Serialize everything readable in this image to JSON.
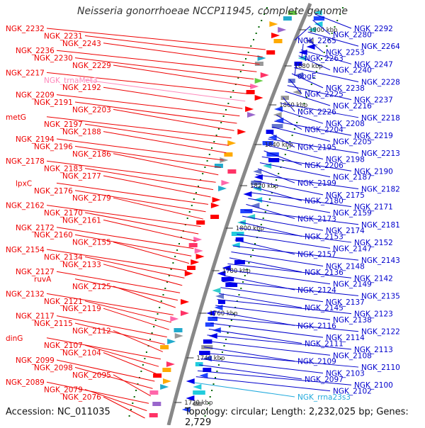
{
  "title": "Neisseria gonorrhoeae NCCP11945, complete genome",
  "footer": {
    "accession": "Accession: NC_011035",
    "topology": "Topology: circular; Length: 2,232,025 bp; Genes: 2,729"
  },
  "colors": {
    "left_gene_label": "#ee0000",
    "right_gene_label": "#0000cc",
    "trna_label": "#ff88bb",
    "rrna_label": "#22aadd",
    "backbone": "#888888",
    "tick_dots": "#006600"
  },
  "scale_ticks": [
    "1900 kbp",
    "1880 kbp",
    "1860 kbp",
    "1840 kbp",
    "1820 kbp",
    "1800 kbp",
    "1780 kbp",
    "1760 kbp",
    "1740 kbp",
    "1720 kbp"
  ],
  "left_labels": [
    "NGK_2232",
    "NGK_2231",
    "NGK_2243",
    "NGK_2236",
    "NGK_2230",
    "NGK_2229",
    "NGK_2217",
    "NGK_trnaMet3",
    "NGK_2192",
    "NGK_2209",
    "NGK_2191",
    "NGK_2203",
    "metG",
    "NGK_2197",
    "NGK_2188",
    "NGK_2194",
    "NGK_2196",
    "NGK_2186",
    "NGK_2178",
    "NGK_2183",
    "NGK_2177",
    "lpxC",
    "NGK_2176",
    "NGK_2179",
    "NGK_2162",
    "NGK_2170",
    "NGK_2161",
    "NGK_2172",
    "NGK_2160",
    "NGK_2155",
    "NGK_2154",
    "NGK_2134",
    "NGK_2133",
    "NGK_2127",
    "ruvA",
    "NGK_2125",
    "NGK_2132",
    "NGK_2121",
    "NGK_2119",
    "NGK_2117",
    "NGK_2115",
    "NGK_2112",
    "dinG",
    "NGK_2107",
    "NGK_2104",
    "NGK_2099",
    "NGK_2098",
    "NGK_2095",
    "NGK_2089",
    "NGK_2079",
    "NGK_2076"
  ],
  "right_labels": [
    "NGK_2292",
    "NGK_2280",
    "NGK_2265",
    "NGK_2264",
    "NGK_2253",
    "NGK_2263",
    "NGK_2247",
    "NGK_2240",
    "obgE",
    "NGK_2228",
    "NGK_2238",
    "NGK_2225",
    "NGK_2237",
    "NGK_2216",
    "NGK_2226",
    "NGK_2218",
    "NGK_2208",
    "NGK_2204",
    "NGK_2219",
    "NGK_2205",
    "NGK_2195",
    "NGK_2213",
    "NGK_2198",
    "NGK_2206",
    "NGK_2190",
    "NGK_2187",
    "NGK_2199",
    "NGK_2182",
    "NGK_2175",
    "NGK_2180",
    "NGK_2171",
    "NGK_2159",
    "NGK_2173",
    "NGK_2181",
    "NGK_2174",
    "NGK_2153",
    "NGK_2152",
    "NGK_2147",
    "NGK_2157",
    "NGK_2143",
    "NGK_2148",
    "NGK_2136",
    "NGK_2142",
    "NGK_2149",
    "NGK_2124",
    "NGK_2135",
    "NGK_2137",
    "NGK_2145",
    "NGK_2123",
    "NGK_2138",
    "NGK_2116",
    "NGK_2122",
    "NGK_2114",
    "NGK_2111",
    "NGK_2113",
    "NGK_2108",
    "NGK_2109",
    "NGK_2110",
    "NGK_2103",
    "NGK_2097",
    "NGK_2100",
    "NGK_2102",
    "NGK_rrna23s3"
  ]
}
